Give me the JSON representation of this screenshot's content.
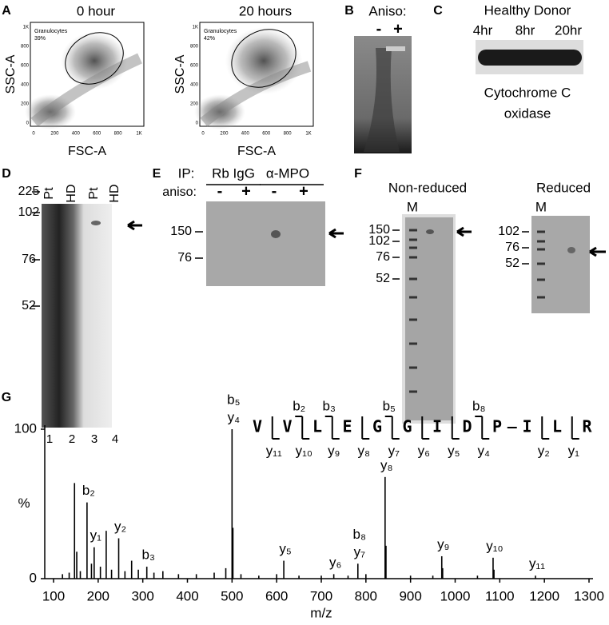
{
  "A": {
    "letter": "A",
    "plots": [
      {
        "title": "0 hour",
        "gate": "Granulocytes",
        "percent": "39%"
      },
      {
        "title": "20 hours",
        "gate": "Granulocytes",
        "percent": "42%"
      }
    ],
    "ylabel": "SSC-A",
    "xlabel": "FSC-A",
    "xticks": [
      "0",
      "200",
      "400",
      "600",
      "800",
      "1K"
    ],
    "yticks": [
      "0",
      "200",
      "400",
      "600",
      "800",
      "1K"
    ]
  },
  "B": {
    "letter": "B",
    "label": "Aniso:",
    "lanes": [
      "-",
      "+"
    ]
  },
  "C": {
    "letter": "C",
    "title": "Healthy Donor",
    "lanes": [
      "4hr",
      "8hr",
      "20hr"
    ],
    "caption": [
      "Cytochrome C",
      "oxidase"
    ]
  },
  "D": {
    "letter": "D",
    "lanes": [
      "Pt",
      "HD",
      "Pt",
      "HD"
    ],
    "markers": [
      "225",
      "102",
      "76",
      "52"
    ],
    "lane_numbers": [
      "1",
      "2",
      "3",
      "4"
    ]
  },
  "E": {
    "letter": "E",
    "ip": "IP:",
    "groups": [
      "Rb IgG",
      "α-MPO"
    ],
    "aniso": "aniso:",
    "lanes": [
      "-",
      "+",
      "-",
      "+"
    ],
    "markers": [
      "150",
      "76"
    ]
  },
  "F": {
    "letter": "F",
    "gels": [
      {
        "title": "Non-reduced",
        "ladder": "M",
        "markers": [
          "150",
          "102",
          "76",
          "52"
        ]
      },
      {
        "title": "Reduced",
        "ladder": "M",
        "markers": [
          "102",
          "76",
          "52"
        ]
      }
    ]
  },
  "G": {
    "letter": "G",
    "sequence": {
      "residues": [
        "V",
        "V",
        "L",
        "E",
        "G",
        "G",
        "I",
        "D",
        "P",
        "I",
        "L",
        "R"
      ],
      "b_ions": [
        null,
        "b₂",
        "b₃",
        null,
        "b₅",
        null,
        null,
        "b₈",
        null,
        null,
        null
      ],
      "y_ions": [
        "y₁₁",
        "y₁₀",
        "y₉",
        "y₈",
        "y₇",
        "y₆",
        "y₅",
        "y₄",
        null,
        "y₂",
        "y₁"
      ]
    },
    "spectrum": {
      "xlim": [
        100,
        1300
      ],
      "ylim": [
        0,
        100
      ],
      "xticks": [
        100,
        200,
        300,
        400,
        500,
        600,
        700,
        800,
        900,
        1000,
        1100,
        1200,
        1300
      ],
      "yticks": [
        0,
        100
      ],
      "ylabel": "%",
      "xlabel": "m/z",
      "mz": [
        120,
        135,
        147,
        152,
        160,
        175,
        185,
        191,
        205,
        218,
        230,
        246,
        260,
        275,
        290,
        309,
        325,
        345,
        380,
        420,
        460,
        486,
        500,
        502,
        520,
        560,
        600,
        616,
        650,
        700,
        728,
        760,
        782,
        800,
        843,
        845,
        900,
        950,
        970,
        972,
        1050,
        1085,
        1087,
        1180
      ],
      "intensity": [
        3,
        4,
        64,
        18,
        5,
        51,
        10,
        21,
        8,
        32,
        6,
        27,
        5,
        12,
        6,
        8,
        4,
        5,
        3,
        3,
        4,
        7,
        100,
        34,
        3,
        2,
        3,
        12,
        2,
        2,
        3,
        2,
        10,
        3,
        68,
        22,
        2,
        2,
        15,
        7,
        2,
        14,
        6,
        2
      ],
      "labels": [
        null,
        null,
        null,
        null,
        null,
        [
          "b₂"
        ],
        null,
        [
          "y₁"
        ],
        null,
        null,
        null,
        [
          "y₂"
        ],
        null,
        null,
        null,
        [
          "b₃"
        ],
        null,
        null,
        null,
        null,
        null,
        null,
        [
          "b₅",
          "y₄"
        ],
        null,
        null,
        null,
        null,
        [
          "y₅"
        ],
        null,
        null,
        [
          "y₆"
        ],
        null,
        [
          "b₈",
          "y₇"
        ],
        null,
        [
          "y₈"
        ],
        null,
        null,
        null,
        [
          "y₉"
        ],
        null,
        null,
        [
          "y₁₀"
        ],
        null,
        [
          "y₁₁"
        ]
      ]
    }
  }
}
